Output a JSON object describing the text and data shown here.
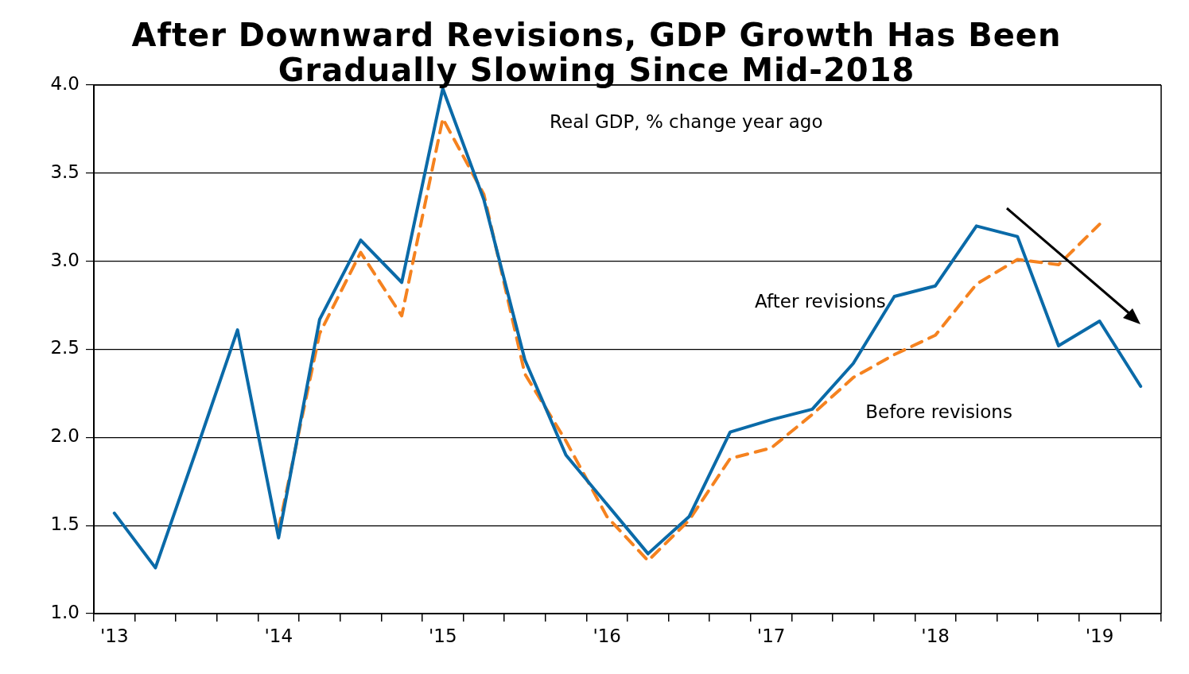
{
  "chart_data": {
    "type": "line",
    "title": "After Downward Revisions, GDP Growth Has Been Gradually Slowing Since Mid-2018",
    "subtitle": "Real GDP, % change year ago",
    "categories": [
      "'13",
      null,
      null,
      null,
      "'14",
      null,
      null,
      null,
      "'15",
      null,
      null,
      null,
      "'16",
      null,
      null,
      null,
      "'17",
      null,
      null,
      null,
      "'18",
      null,
      null,
      null,
      "'19",
      null
    ],
    "series": [
      {
        "name": "After revisions",
        "color": "#0a6aa8",
        "line_style": "solid",
        "values": [
          1.57,
          1.26,
          1.93,
          2.61,
          1.43,
          2.67,
          3.12,
          2.88,
          3.98,
          3.35,
          2.44,
          1.9,
          1.62,
          1.34,
          1.55,
          2.03,
          2.1,
          2.16,
          2.42,
          2.8,
          2.86,
          3.2,
          3.14,
          2.52,
          2.66,
          2.29
        ]
      },
      {
        "name": "Before revisions",
        "color": "#f5821f",
        "line_style": "dashed",
        "values": [
          null,
          null,
          null,
          null,
          1.48,
          2.59,
          3.05,
          2.69,
          3.81,
          3.38,
          2.36,
          1.98,
          1.55,
          1.3,
          1.53,
          1.88,
          1.94,
          2.13,
          2.34,
          2.47,
          2.58,
          2.87,
          3.01,
          2.98,
          3.21,
          null
        ]
      }
    ],
    "ylim": [
      1,
      4
    ],
    "yticks": [
      {
        "value": 1,
        "label": "1.0"
      },
      {
        "value": 1.5,
        "label": "1.5"
      },
      {
        "value": 2,
        "label": "2.0"
      },
      {
        "value": 2.5,
        "label": "2.5"
      },
      {
        "value": 3,
        "label": "3.0"
      },
      {
        "value": 3.5,
        "label": "3.5"
      },
      {
        "value": 4,
        "label": "4.0"
      }
    ],
    "grid": "y",
    "legend": false,
    "marker": "none"
  }
}
